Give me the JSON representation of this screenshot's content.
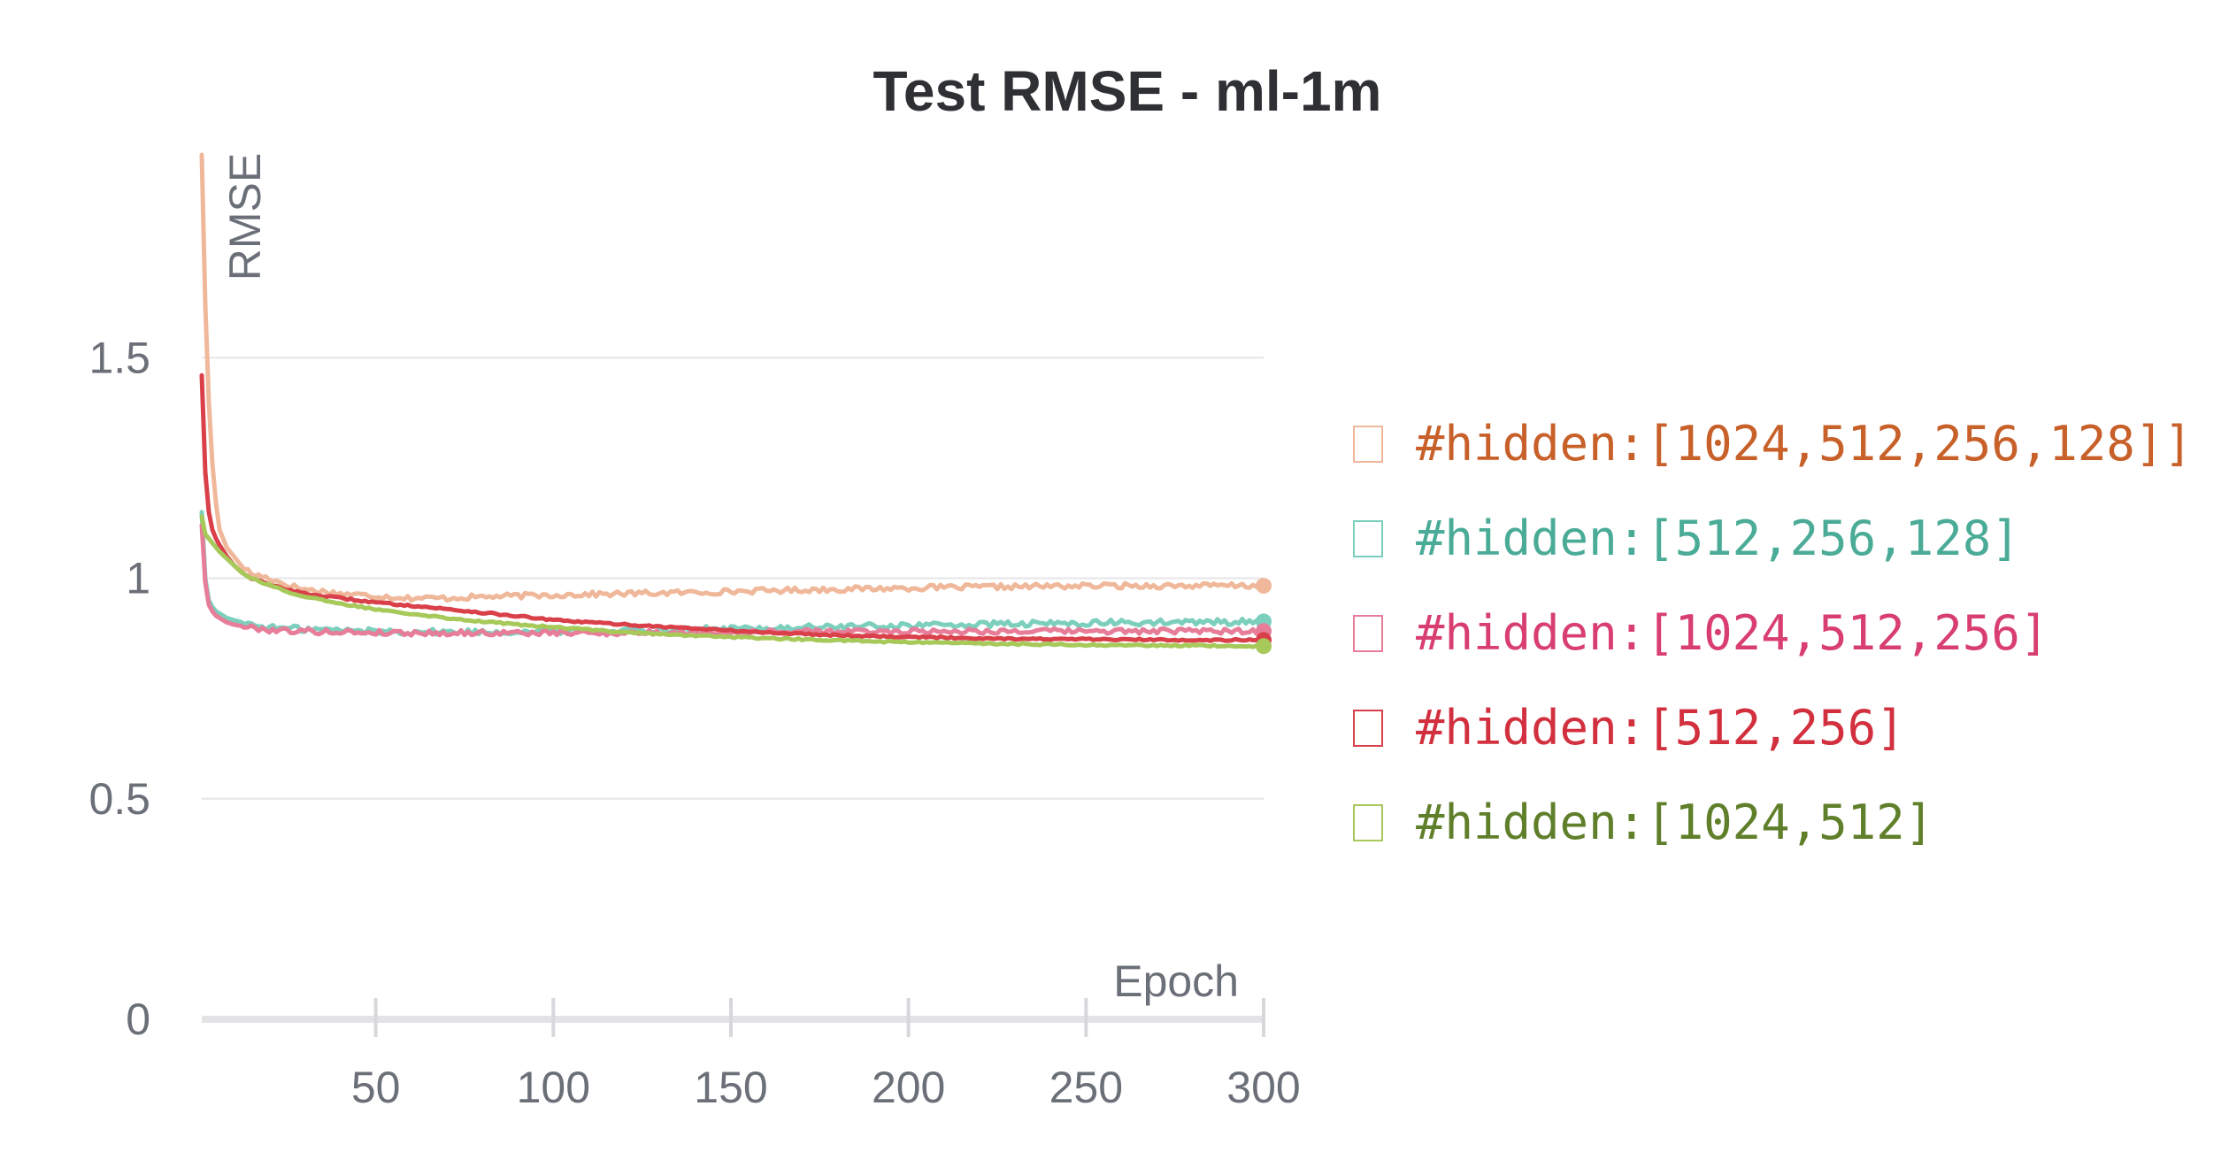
{
  "chart_data": {
    "type": "line",
    "title": "Test RMSE - ml-1m",
    "xlabel": "Epoch",
    "ylabel": "RMSE",
    "xlim": [
      1,
      300
    ],
    "ylim": [
      0,
      1.96
    ],
    "x_ticks": [
      50,
      100,
      150,
      200,
      250,
      300
    ],
    "y_ticks": [
      0,
      0.5,
      1,
      1.5
    ],
    "x_tick_labels": [
      "50",
      "100",
      "150",
      "200",
      "250",
      "300"
    ],
    "y_tick_labels": [
      "0",
      "0.5",
      "1",
      "1.5"
    ],
    "grid": "horizontal",
    "legend_position": "right",
    "series": [
      {
        "name": "#hidden:[1024,512,256,128]]",
        "color": "#f0b89a",
        "text_color": "#c8602a",
        "x": [
          1,
          2,
          3,
          4,
          5,
          6,
          8,
          10,
          12,
          15,
          20,
          25,
          30,
          40,
          50,
          60,
          70,
          80,
          90,
          100,
          120,
          140,
          160,
          180,
          200,
          220,
          240,
          260,
          280,
          300
        ],
        "y": [
          1.96,
          1.62,
          1.4,
          1.26,
          1.17,
          1.11,
          1.07,
          1.05,
          1.03,
          1.01,
          1.0,
          0.985,
          0.975,
          0.965,
          0.96,
          0.955,
          0.955,
          0.958,
          0.96,
          0.962,
          0.965,
          0.968,
          0.972,
          0.975,
          0.978,
          0.98,
          0.982,
          0.983,
          0.983,
          0.983
        ]
      },
      {
        "name": "#hidden:[512,256,128]",
        "color": "#7dcfbd",
        "text_color": "#4aab97",
        "x": [
          1,
          2,
          3,
          4,
          5,
          6,
          8,
          10,
          15,
          20,
          30,
          40,
          50,
          60,
          70,
          80,
          90,
          100,
          120,
          140,
          160,
          180,
          200,
          220,
          240,
          260,
          280,
          300
        ],
        "y": [
          1.15,
          1.0,
          0.95,
          0.935,
          0.925,
          0.92,
          0.91,
          0.905,
          0.895,
          0.888,
          0.885,
          0.882,
          0.88,
          0.879,
          0.878,
          0.878,
          0.879,
          0.88,
          0.882,
          0.884,
          0.887,
          0.89,
          0.893,
          0.895,
          0.897,
          0.899,
          0.9,
          0.902
        ]
      },
      {
        "name": "#hidden:[1024,512,256]",
        "color": "#e77d99",
        "text_color": "#d83f70",
        "x": [
          1,
          2,
          3,
          4,
          5,
          6,
          8,
          10,
          15,
          20,
          30,
          40,
          50,
          60,
          70,
          80,
          90,
          100,
          120,
          140,
          160,
          180,
          200,
          220,
          240,
          260,
          280,
          300
        ],
        "y": [
          1.12,
          0.99,
          0.94,
          0.925,
          0.915,
          0.91,
          0.9,
          0.895,
          0.888,
          0.883,
          0.88,
          0.878,
          0.877,
          0.876,
          0.876,
          0.876,
          0.876,
          0.876,
          0.876,
          0.877,
          0.878,
          0.879,
          0.88,
          0.88,
          0.88,
          0.88,
          0.88,
          0.88
        ]
      },
      {
        "name": "#hidden:[512,256]",
        "color": "#d9404a",
        "text_color": "#d2303e",
        "x": [
          1,
          2,
          3,
          4,
          5,
          6,
          8,
          10,
          12,
          15,
          20,
          25,
          30,
          40,
          50,
          60,
          70,
          80,
          90,
          100,
          120,
          140,
          160,
          180,
          200,
          220,
          240,
          260,
          280,
          300
        ],
        "y": [
          1.46,
          1.24,
          1.15,
          1.11,
          1.09,
          1.075,
          1.05,
          1.03,
          1.015,
          1.0,
          0.985,
          0.975,
          0.965,
          0.955,
          0.945,
          0.938,
          0.93,
          0.922,
          0.914,
          0.905,
          0.895,
          0.886,
          0.877,
          0.871,
          0.867,
          0.864,
          0.862,
          0.861,
          0.86,
          0.86
        ]
      },
      {
        "name": "#hidden:[1024,512]",
        "color": "#a6c95a",
        "text_color": "#5f7f2a",
        "x": [
          1,
          2,
          3,
          4,
          5,
          6,
          8,
          10,
          12,
          15,
          20,
          25,
          30,
          40,
          50,
          60,
          70,
          80,
          90,
          100,
          120,
          140,
          160,
          180,
          200,
          220,
          240,
          260,
          280,
          300
        ],
        "y": [
          1.14,
          1.1,
          1.09,
          1.08,
          1.07,
          1.06,
          1.045,
          1.03,
          1.015,
          1.0,
          0.985,
          0.97,
          0.958,
          0.942,
          0.93,
          0.92,
          0.91,
          0.902,
          0.895,
          0.889,
          0.878,
          0.87,
          0.864,
          0.859,
          0.855,
          0.852,
          0.85,
          0.848,
          0.847,
          0.846
        ]
      }
    ]
  }
}
